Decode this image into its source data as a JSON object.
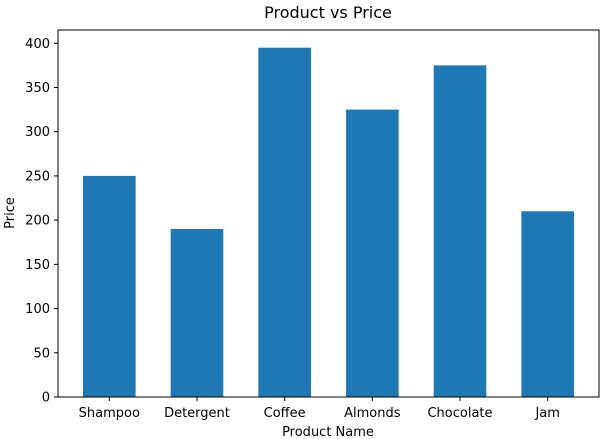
{
  "chart_data": {
    "type": "bar",
    "title": "Product vs Price",
    "xlabel": "Product Name",
    "ylabel": "Price",
    "categories": [
      "Shampoo",
      "Detergent",
      "Coffee",
      "Almonds",
      "Chocolate",
      "Jam"
    ],
    "values": [
      250,
      190,
      395,
      325,
      375,
      210
    ],
    "ylim": [
      0,
      415
    ],
    "yticks": [
      0,
      50,
      100,
      150,
      200,
      250,
      300,
      350,
      400
    ],
    "grid": false,
    "bar_color": "#1f77b4"
  }
}
